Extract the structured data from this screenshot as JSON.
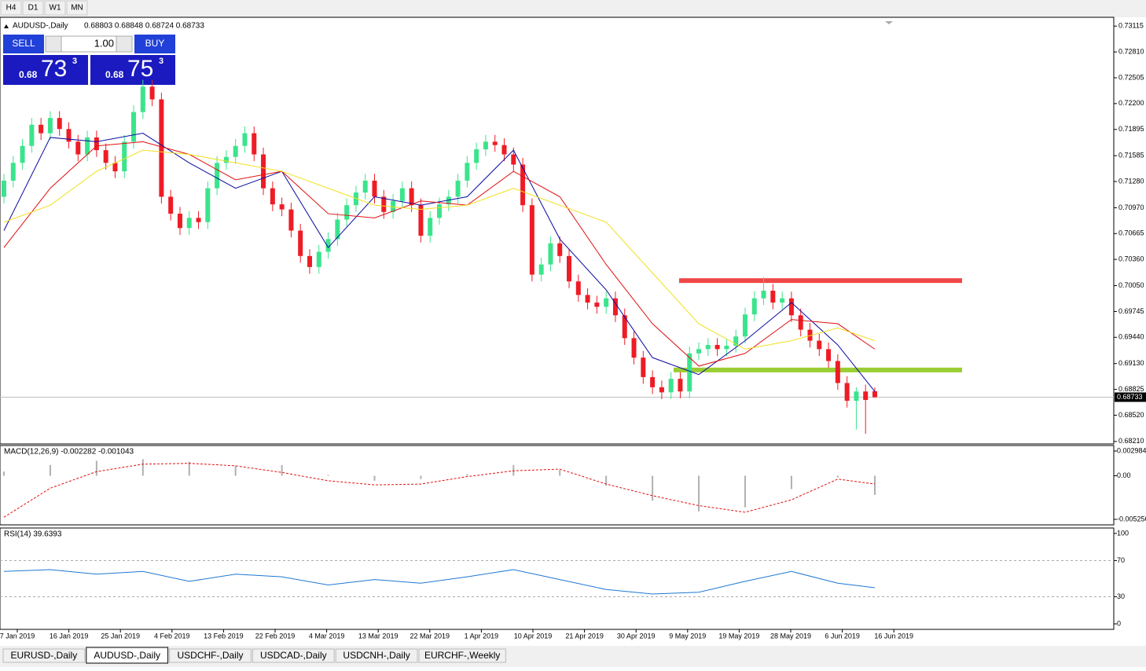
{
  "toolbar": {
    "buttons": [
      "H4",
      "D1",
      "W1",
      "MN"
    ]
  },
  "trade_panel": {
    "sell": "SELL",
    "buy": "BUY",
    "lot": "1.00",
    "bid_big": "0.68",
    "bid_main": "73",
    "bid_sup": "3",
    "ask_big": "0.68",
    "ask_main": "75",
    "ask_sup": "3"
  },
  "tabs": {
    "items": [
      "EURUSD-,Daily",
      "AUDUSD-,Daily",
      "USDCHF-,Daily",
      "USDCAD-,Daily",
      "USDCNH-,Daily",
      "EURCHF-,Weekly"
    ],
    "active": 1
  },
  "chart_data": {
    "type": "candlestick",
    "title": "AUDUSD-,Daily",
    "ohlc_text": "0.68803 0.68848 0.68724 0.68733",
    "up_color": "#3be48c",
    "down_color": "#ee1c25",
    "ylim": [
      0.6819,
      0.7321
    ],
    "yticks": [
      0.73115,
      {
        "value": 0.7281,
        "label": "0.72810"
      },
      0.72505,
      {
        "value": 0.722,
        "label": "0.72200"
      },
      0.71895,
      0.71585,
      {
        "value": 0.7128,
        "label": "0.71280"
      },
      {
        "value": 0.7097,
        "label": "0.70970"
      },
      0.70665,
      {
        "value": 0.7036,
        "label": "0.70360"
      },
      {
        "value": 0.7005,
        "label": "0.70050"
      },
      0.69745,
      {
        "value": 0.6944,
        "label": "0.69440"
      },
      {
        "value": 0.6913,
        "label": "0.69130"
      },
      0.68825,
      {
        "value": 0.6852,
        "label": "0.68520"
      },
      {
        "value": 0.6821,
        "label": "0.68210"
      }
    ],
    "last_price": {
      "value": 0.68733,
      "label": "0.68733"
    },
    "x_labels": [
      "7 Jan 2019",
      "16 Jan 2019",
      "25 Jan 2019",
      "4 Feb 2019",
      "13 Feb 2019",
      "22 Feb 2019",
      "4 Mar 2019",
      "13 Mar 2019",
      "22 Mar 2019",
      "1 Apr 2019",
      "10 Apr 2019",
      "21 Apr 2019",
      "30 Apr 2019",
      "9 May 2019",
      "19 May 2019",
      "28 May 2019",
      "6 Jun 2019",
      "16 Jun 2019"
    ],
    "candles": [
      [
        0.711,
        0.7137,
        0.7102,
        0.7129
      ],
      [
        0.7129,
        0.7158,
        0.7121,
        0.715
      ],
      [
        0.715,
        0.7178,
        0.7142,
        0.717
      ],
      [
        0.717,
        0.7203,
        0.7162,
        0.7195
      ],
      [
        0.7195,
        0.7203,
        0.7177,
        0.7185
      ],
      [
        0.7185,
        0.7211,
        0.7177,
        0.7203
      ],
      [
        0.7203,
        0.7211,
        0.7182,
        0.719
      ],
      [
        0.719,
        0.7198,
        0.7167,
        0.7175
      ],
      [
        0.7175,
        0.7183,
        0.7152,
        0.716
      ],
      [
        0.716,
        0.7188,
        0.7152,
        0.718
      ],
      [
        0.718,
        0.7188,
        0.7157,
        0.7165
      ],
      [
        0.7165,
        0.7173,
        0.7142,
        0.715
      ],
      [
        0.715,
        0.7158,
        0.7132,
        0.714
      ],
      [
        0.714,
        0.7183,
        0.7132,
        0.7175
      ],
      [
        0.7175,
        0.7218,
        0.7167,
        0.721
      ],
      [
        0.721,
        0.7248,
        0.7202,
        0.724
      ],
      [
        0.724,
        0.7248,
        0.7217,
        0.7225
      ],
      [
        0.7225,
        0.7233,
        0.7102,
        0.711
      ],
      [
        0.711,
        0.7118,
        0.7082,
        0.709
      ],
      [
        0.709,
        0.7098,
        0.7065,
        0.7073
      ],
      [
        0.7073,
        0.7093,
        0.7065,
        0.7085
      ],
      [
        0.7085,
        0.7093,
        0.7072,
        0.708
      ],
      [
        0.708,
        0.7128,
        0.7072,
        0.712
      ],
      [
        0.712,
        0.7158,
        0.7112,
        0.715
      ],
      [
        0.715,
        0.7165,
        0.7142,
        0.7157
      ],
      [
        0.7157,
        0.7178,
        0.7149,
        0.717
      ],
      [
        0.717,
        0.7193,
        0.7162,
        0.7185
      ],
      [
        0.7185,
        0.7193,
        0.7152,
        0.716
      ],
      [
        0.716,
        0.7168,
        0.7112,
        0.712
      ],
      [
        0.712,
        0.7128,
        0.7093,
        0.7101
      ],
      [
        0.7101,
        0.7109,
        0.7087,
        0.7095
      ],
      [
        0.7095,
        0.7103,
        0.7062,
        0.707
      ],
      [
        0.707,
        0.7078,
        0.7032,
        0.704
      ],
      [
        0.704,
        0.7048,
        0.7019,
        0.7027
      ],
      [
        0.7027,
        0.7053,
        0.7019,
        0.7045
      ],
      [
        0.7045,
        0.7068,
        0.7037,
        0.706
      ],
      [
        0.706,
        0.7091,
        0.7052,
        0.7083
      ],
      [
        0.7083,
        0.7108,
        0.7075,
        0.71
      ],
      [
        0.71,
        0.7123,
        0.7092,
        0.7115
      ],
      [
        0.7115,
        0.7137,
        0.7107,
        0.7129
      ],
      [
        0.7129,
        0.7137,
        0.7102,
        0.711
      ],
      [
        0.711,
        0.7118,
        0.7084,
        0.7092
      ],
      [
        0.7092,
        0.7113,
        0.7084,
        0.7105
      ],
      [
        0.7105,
        0.7128,
        0.7097,
        0.712
      ],
      [
        0.712,
        0.7128,
        0.7092,
        0.71
      ],
      [
        0.71,
        0.7108,
        0.7056,
        0.7064
      ],
      [
        0.7064,
        0.7093,
        0.7056,
        0.7085
      ],
      [
        0.7085,
        0.7109,
        0.7077,
        0.7101
      ],
      [
        0.7101,
        0.7118,
        0.7093,
        0.711
      ],
      [
        0.711,
        0.7137,
        0.7102,
        0.7129
      ],
      [
        0.7129,
        0.7158,
        0.7121,
        0.715
      ],
      [
        0.715,
        0.7174,
        0.7142,
        0.7166
      ],
      [
        0.7166,
        0.7183,
        0.7158,
        0.7175
      ],
      [
        0.7175,
        0.7183,
        0.7163,
        0.7171
      ],
      [
        0.7171,
        0.7179,
        0.7152,
        0.716
      ],
      [
        0.716,
        0.7168,
        0.714,
        0.7148
      ],
      [
        0.7148,
        0.7156,
        0.7092,
        0.71
      ],
      [
        0.71,
        0.7108,
        0.701,
        0.7018
      ],
      [
        0.7018,
        0.7038,
        0.701,
        0.703
      ],
      [
        0.703,
        0.7063,
        0.7022,
        0.7055
      ],
      [
        0.7055,
        0.7063,
        0.7032,
        0.704
      ],
      [
        0.704,
        0.7048,
        0.7002,
        0.701
      ],
      [
        0.701,
        0.7018,
        0.6986,
        0.6994
      ],
      [
        0.6994,
        0.7002,
        0.6977,
        0.6985
      ],
      [
        0.6985,
        0.6993,
        0.6972,
        0.698
      ],
      [
        0.698,
        0.6998,
        0.6972,
        0.699
      ],
      [
        0.699,
        0.6998,
        0.6962,
        0.697
      ],
      [
        0.697,
        0.6978,
        0.6935,
        0.6943
      ],
      [
        0.6943,
        0.6951,
        0.6912,
        0.692
      ],
      [
        0.692,
        0.6928,
        0.6889,
        0.6897
      ],
      [
        0.6897,
        0.6905,
        0.6877,
        0.6885
      ],
      [
        0.6885,
        0.6893,
        0.6871,
        0.6879
      ],
      [
        0.6879,
        0.6903,
        0.6871,
        0.6895
      ],
      [
        0.6895,
        0.6903,
        0.6872,
        0.688
      ],
      [
        0.688,
        0.6933,
        0.6872,
        0.6925
      ],
      [
        0.6925,
        0.6938,
        0.6917,
        0.693
      ],
      [
        0.693,
        0.6943,
        0.6922,
        0.6935
      ],
      [
        0.6935,
        0.6943,
        0.6922,
        0.693
      ],
      [
        0.693,
        0.6942,
        0.6922,
        0.6934
      ],
      [
        0.6934,
        0.6953,
        0.6926,
        0.6945
      ],
      [
        0.6945,
        0.6979,
        0.6937,
        0.6971
      ],
      [
        0.6971,
        0.6998,
        0.6963,
        0.699
      ],
      [
        0.699,
        0.7015,
        0.6982,
        0.6999
      ],
      [
        0.6999,
        0.7007,
        0.6977,
        0.6985
      ],
      [
        0.6985,
        0.6998,
        0.6977,
        0.699
      ],
      [
        0.699,
        0.6998,
        0.6962,
        0.697
      ],
      [
        0.697,
        0.6978,
        0.6945,
        0.6953
      ],
      [
        0.6953,
        0.6961,
        0.6932,
        0.694
      ],
      [
        0.694,
        0.6948,
        0.6922,
        0.693
      ],
      [
        0.693,
        0.6938,
        0.6908,
        0.6916
      ],
      [
        0.6916,
        0.6924,
        0.6882,
        0.689
      ],
      [
        0.689,
        0.6898,
        0.6861,
        0.6869
      ],
      [
        0.6869,
        0.6885,
        0.6835,
        0.688
      ],
      [
        0.688,
        0.6888,
        0.683,
        0.687
      ],
      [
        0.68803,
        0.68848,
        0.68724,
        0.68733
      ]
    ],
    "ma_x": [
      0,
      5,
      10,
      15,
      20,
      25,
      30,
      35,
      40,
      45,
      50,
      55,
      60,
      65,
      70,
      75,
      80,
      85,
      90,
      94
    ],
    "moving_averages": [
      {
        "color": "#0a0aa0",
        "values": [
          0.707,
          0.718,
          0.7175,
          0.7185,
          0.715,
          0.712,
          0.714,
          0.705,
          0.711,
          0.71,
          0.711,
          0.7165,
          0.706,
          0.7,
          0.692,
          0.69,
          0.694,
          0.6985,
          0.6935,
          0.688
        ]
      },
      {
        "color": "#e01010",
        "values": [
          0.705,
          0.712,
          0.717,
          0.7175,
          0.716,
          0.713,
          0.714,
          0.709,
          0.7085,
          0.7105,
          0.71,
          0.714,
          0.711,
          0.703,
          0.696,
          0.691,
          0.6925,
          0.6965,
          0.696,
          0.693
        ]
      },
      {
        "color": "#f0e020",
        "values": [
          0.708,
          0.71,
          0.714,
          0.7165,
          0.716,
          0.715,
          0.714,
          0.712,
          0.71,
          0.7095,
          0.71,
          0.712,
          0.71,
          0.708,
          0.702,
          0.696,
          0.693,
          0.694,
          0.6955,
          0.694
        ]
      }
    ],
    "levels": [
      {
        "value": 0.7011,
        "color": "#f04848"
      },
      {
        "value": 0.69054,
        "color": "#9acd32"
      }
    ],
    "macd": {
      "label": "MACD(12,26,9) -0.002282 -0.001043",
      "ylim": [
        -0.00592,
        0.00365
      ],
      "yticks": [
        0.002984,
        {
          "value": 0,
          "label": "0.00"
        },
        -0.005256
      ],
      "histogram": [
        0.0005,
        0.0013,
        0.0018,
        0.002,
        0.0017,
        0.0012,
        0.0013,
        0.0001,
        -0.0006,
        -0.0004,
        0.0002,
        0.0013,
        0.0007,
        -0.0012,
        -0.003,
        -0.0043,
        -0.0038,
        -0.0016,
        -0.0002,
        -0.0023
      ],
      "signal": [
        -0.005,
        -0.0015,
        0.0005,
        0.0014,
        0.0015,
        0.0012,
        0.0004,
        -0.0006,
        -0.0011,
        -0.001,
        -0.0001,
        0.0006,
        0.0008,
        -0.001,
        -0.0024,
        -0.0036,
        -0.0044,
        -0.0029,
        -0.0004,
        -0.001
      ]
    },
    "rsi": {
      "label": "RSI(14) 39.6393",
      "ylim": [
        -5.2,
        106
      ],
      "yticks": [
        100,
        70,
        30,
        0
      ],
      "levels": [
        70,
        30
      ],
      "values": [
        58,
        60,
        55,
        58,
        47,
        55,
        52,
        43,
        49,
        45,
        52,
        60,
        49,
        38,
        33,
        35,
        47,
        58,
        45,
        40
      ]
    }
  }
}
